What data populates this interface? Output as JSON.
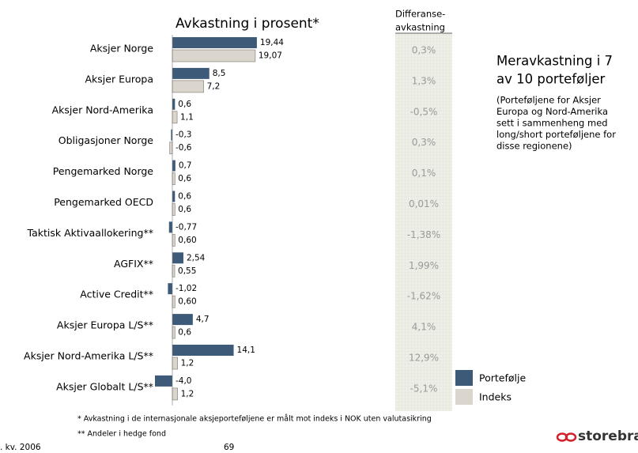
{
  "chart_data": {
    "type": "bar",
    "orientation": "horizontal",
    "title": "Avkastning i prosent*",
    "difference_header": [
      "Differanse-",
      "avkastning"
    ],
    "categories": [
      "Aksjer Norge",
      "Aksjer Europa",
      "Aksjer Nord-Amerika",
      "Obligasjoner Norge",
      "Pengemarked Norge",
      "Pengemarked OECD",
      "Taktisk Aktivaallokering**",
      "AGFIX**",
      "Active Credit**",
      "Aksjer Europa L/S**",
      "Aksjer Nord-Amerika L/S**",
      "Aksjer Globalt L/S**"
    ],
    "series": [
      {
        "name": "Portefølje",
        "color": "#3e5a79",
        "values": [
          19.44,
          8.5,
          0.6,
          -0.3,
          0.7,
          0.6,
          -0.77,
          2.54,
          -1.02,
          4.7,
          14.1,
          -4.0
        ],
        "value_labels": [
          "19,44",
          "8,5",
          "0,6",
          "-0,3",
          "0,7",
          "0,6",
          "-0,77",
          "2,54",
          "-1,02",
          "4,7",
          "14,1",
          "-4,0"
        ]
      },
      {
        "name": "Indeks",
        "color": "#dad5cd",
        "values": [
          19.07,
          7.2,
          1.1,
          -0.6,
          0.6,
          0.6,
          0.6,
          0.55,
          0.6,
          0.6,
          1.2,
          1.2
        ],
        "value_labels": [
          "19,07",
          "7,2",
          "1,1",
          "-0,6",
          "0,6",
          "0,6",
          "0,60",
          "0,55",
          "0,60",
          "0,6",
          "1,2",
          "1,2"
        ]
      }
    ],
    "differences": {
      "values": [
        0.3,
        1.3,
        -0.5,
        0.3,
        0.1,
        0.01,
        -1.38,
        1.99,
        -1.62,
        4.1,
        12.9,
        -5.1
      ],
      "value_labels": [
        "0,3%",
        "1,3%",
        "-0,5%",
        "0,3%",
        "0,1%",
        "0,01%",
        "-1,38%",
        "1,99%",
        "-1,62%",
        "4,1%",
        "12,9%",
        "-5,1%"
      ]
    },
    "annotation_title": [
      "Meravkastning i 7",
      "av 10 porteføljer"
    ],
    "annotation_text": [
      "(Porteføljene for Aksjer",
      "Europa og Nord-Amerika",
      "sett i sammenheng med",
      "long/short porteføljene for",
      "disse regionene)"
    ],
    "footnotes": [
      "* Avkastning i de internasjonale aksjeporteføljene er målt mot indeks i NOK uten valutasikring",
      "** Andeler i hedge fond"
    ],
    "footer_left": ". kv. 2006",
    "page_number": "69",
    "logo": "storebrand"
  }
}
